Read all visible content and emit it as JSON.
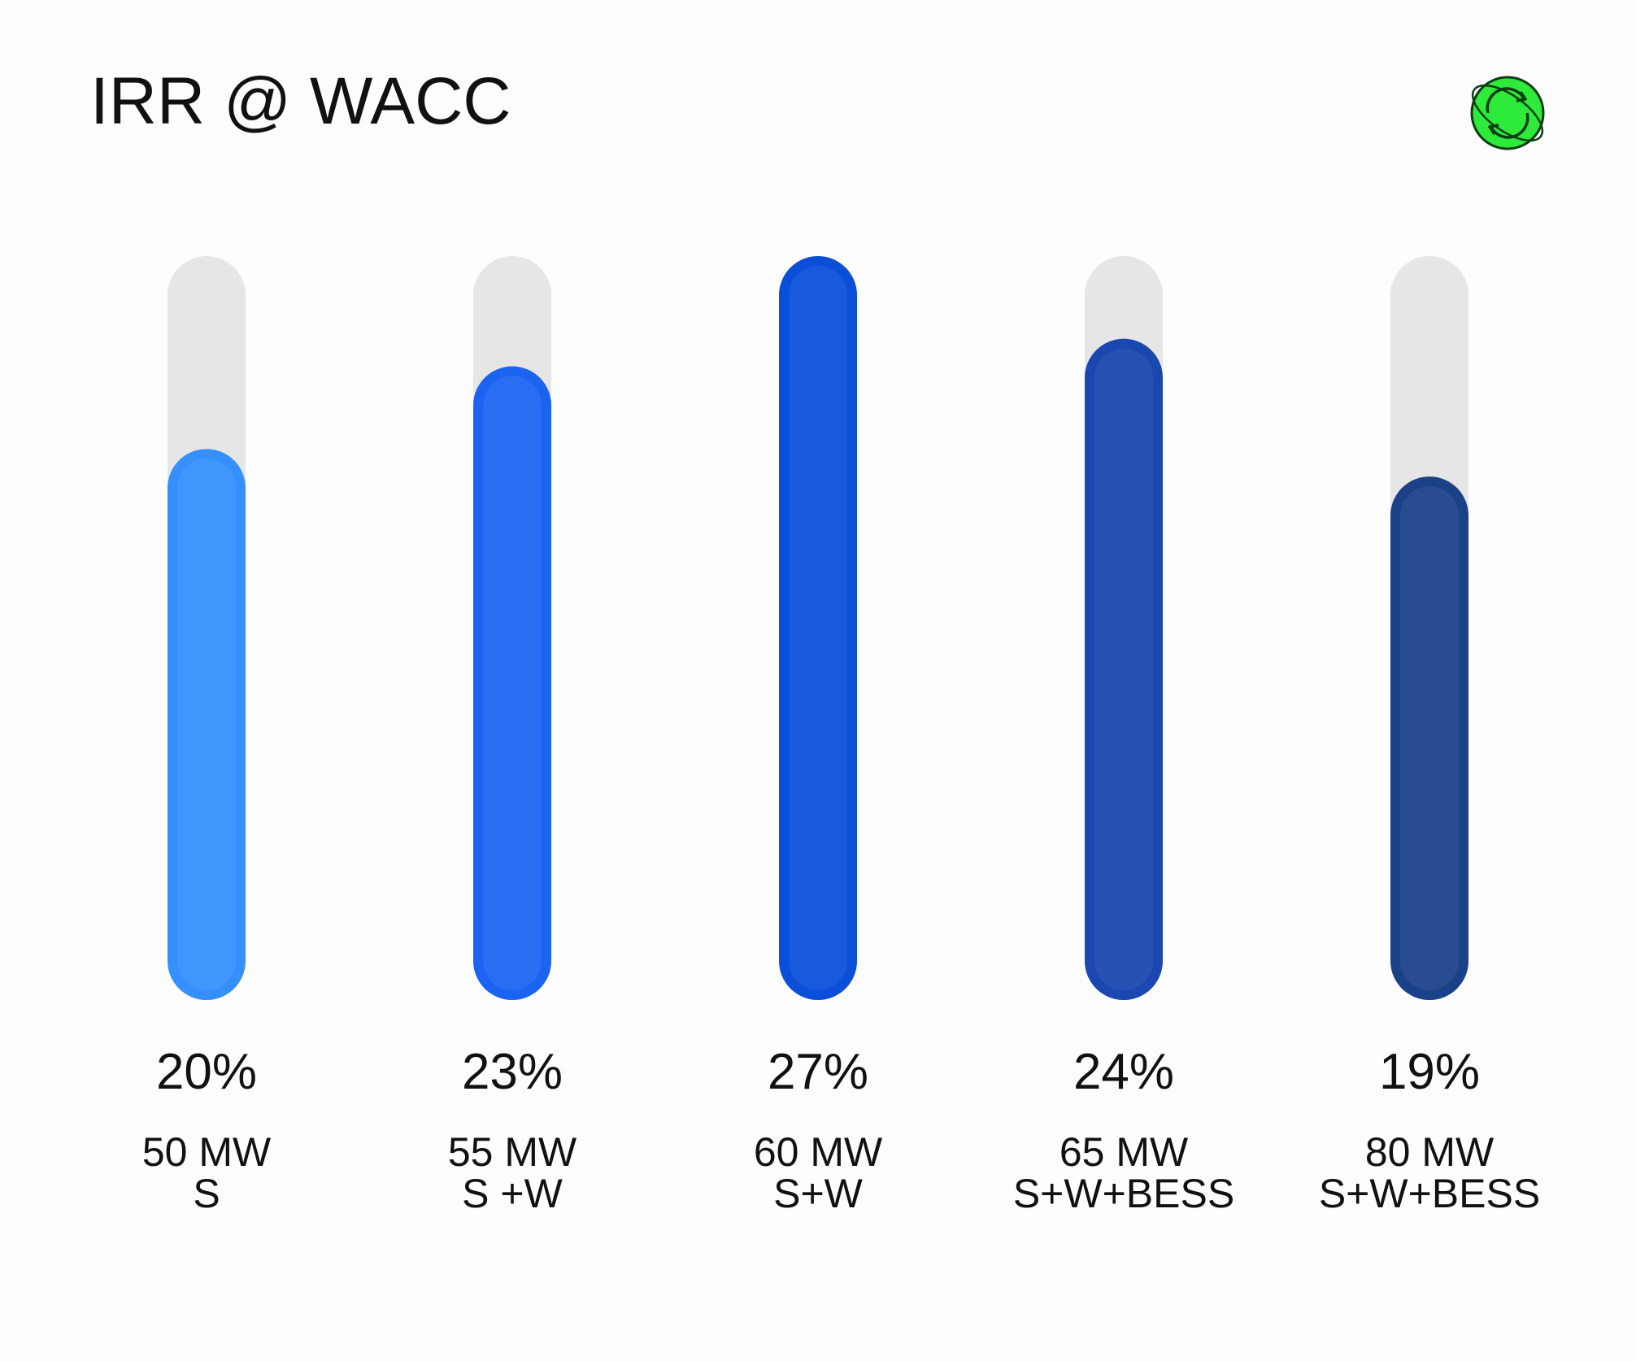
{
  "chart_data": {
    "type": "bar",
    "title": "IRR @ WACC",
    "xlabel": "",
    "ylabel": "",
    "ylim": [
      0,
      27
    ],
    "grid": false,
    "categories": [
      {
        "capacity": "50 MW",
        "config": "S"
      },
      {
        "capacity": "55 MW",
        "config": "S +W"
      },
      {
        "capacity": "60 MW",
        "config": "S+W"
      },
      {
        "capacity": "65 MW",
        "config": "S+W+BESS"
      },
      {
        "capacity": "80 MW",
        "config": "S+W+BESS"
      }
    ],
    "values": [
      20,
      23,
      27,
      24,
      19
    ],
    "value_labels": [
      "20%",
      "23%",
      "27%",
      "24%",
      "19%"
    ],
    "colors": [
      "#3590FD",
      "#1B64F2",
      "#0B4FD9",
      "#1A48B0",
      "#1B4189"
    ],
    "track_color": "#E6E6E6"
  },
  "logo": {
    "icon": "globe-sync-icon",
    "color": "#2EEA3A"
  }
}
